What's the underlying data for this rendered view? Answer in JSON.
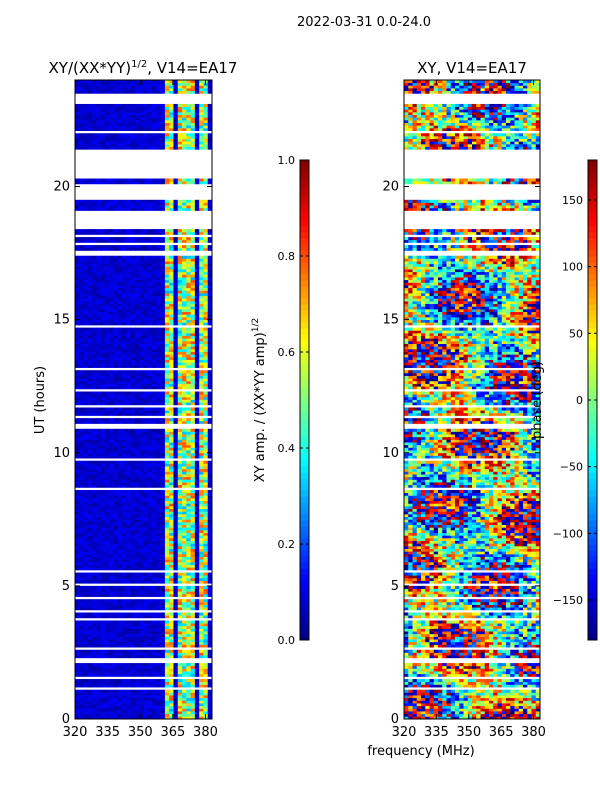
{
  "suptitle": "2022-03-31 0.0-24.0",
  "xlabel": "frequency (MHz)",
  "chart_data": [
    {
      "type": "heatmap",
      "title": "XY/(XX*YY)",
      "title_sup": "1/2",
      "title_suffix": ", V14=EA17",
      "xlabel": "frequency (MHz)",
      "ylabel": "UT (hours)",
      "xlim": [
        320,
        383
      ],
      "ylim": [
        0,
        24
      ],
      "xticks": [
        320,
        335,
        350,
        365,
        380
      ],
      "yticks": [
        0,
        5,
        10,
        15,
        20
      ],
      "colormap": "jet",
      "colorbar": {
        "label": "XY amp. / (XX*YY amp)",
        "label_sup": "1/2",
        "range": [
          0.0,
          1.0
        ],
        "ticks": [
          "0.0",
          "0.2",
          "0.4",
          "0.6",
          "0.8",
          "1.0"
        ]
      },
      "no_data_hours": [
        [
          1.1,
          1.25
        ],
        [
          1.55,
          1.6
        ],
        [
          2.1,
          2.3
        ],
        [
          2.6,
          2.7
        ],
        [
          3.45,
          3.55
        ],
        [
          3.68,
          3.76
        ],
        [
          4.0,
          4.1
        ],
        [
          4.55,
          4.65
        ],
        [
          4.95,
          5.1
        ],
        [
          5.5,
          5.6
        ],
        [
          8.65,
          8.75
        ],
        [
          9.7,
          9.85
        ],
        [
          10.95,
          11.08
        ],
        [
          11.35,
          11.45
        ],
        [
          11.75,
          11.85
        ],
        [
          12.3,
          12.4
        ],
        [
          13.15,
          13.25
        ],
        [
          14.55,
          14.65
        ],
        [
          14.72,
          14.8
        ],
        [
          14.98,
          15.05
        ],
        [
          17.45,
          17.55
        ],
        [
          17.85,
          17.95
        ],
        [
          18.1,
          18.22
        ],
        [
          18.45,
          19.08
        ],
        [
          19.5,
          20.15
        ],
        [
          20.35,
          21.4
        ],
        [
          22.0,
          22.1
        ],
        [
          22.85,
          22.95
        ],
        [
          23.15,
          23.3
        ],
        [
          23.35,
          23.5
        ]
      ],
      "bright_channels_mhz": [
        [
          362,
          366
        ],
        [
          367,
          371
        ],
        [
          372,
          376
        ],
        [
          377,
          381
        ]
      ],
      "background_level": 0.08,
      "channel_level": 0.55
    },
    {
      "type": "heatmap",
      "title": "XY, V14=EA17",
      "xlabel": "frequency (MHz)",
      "ylabel": "",
      "xlim": [
        320,
        383
      ],
      "ylim": [
        0,
        24
      ],
      "xticks": [
        320,
        335,
        350,
        365,
        380
      ],
      "yticks": [
        0,
        5,
        10,
        15,
        20
      ],
      "colormap": "jet",
      "colorbar": {
        "label": "phase (deg)",
        "range": [
          -180,
          180
        ],
        "ticks": [
          "−150",
          "−100",
          "−50",
          "0",
          "50",
          "100",
          "150"
        ],
        "tick_values": [
          -150,
          -100,
          -50,
          0,
          50,
          100,
          150
        ]
      },
      "no_data_hours": [
        [
          1.1,
          1.25
        ],
        [
          1.55,
          1.6
        ],
        [
          2.1,
          2.3
        ],
        [
          2.6,
          2.7
        ],
        [
          3.45,
          3.55
        ],
        [
          3.68,
          3.76
        ],
        [
          4.0,
          4.1
        ],
        [
          4.55,
          4.65
        ],
        [
          4.95,
          5.1
        ],
        [
          5.5,
          5.6
        ],
        [
          8.65,
          8.75
        ],
        [
          9.7,
          9.85
        ],
        [
          10.95,
          11.08
        ],
        [
          11.35,
          11.45
        ],
        [
          11.75,
          11.85
        ],
        [
          12.3,
          12.4
        ],
        [
          13.15,
          13.25
        ],
        [
          14.55,
          14.65
        ],
        [
          14.72,
          14.8
        ],
        [
          14.98,
          15.05
        ],
        [
          17.45,
          17.55
        ],
        [
          17.85,
          17.95
        ],
        [
          18.1,
          18.22
        ],
        [
          18.45,
          19.08
        ],
        [
          19.5,
          20.15
        ],
        [
          20.35,
          21.4
        ],
        [
          22.0,
          22.1
        ],
        [
          22.85,
          22.95
        ],
        [
          23.15,
          23.3
        ],
        [
          23.35,
          23.5
        ]
      ]
    }
  ]
}
